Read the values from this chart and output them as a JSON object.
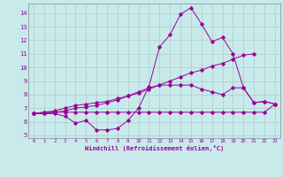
{
  "xlabel": "Windchill (Refroidissement éolien,°C)",
  "background_color": "#c8eaea",
  "line_color": "#990099",
  "grid_color": "#aacccc",
  "spine_color": "#888899",
  "x_ticks": [
    0,
    1,
    2,
    3,
    4,
    5,
    6,
    7,
    8,
    9,
    10,
    11,
    12,
    13,
    14,
    15,
    16,
    17,
    18,
    19,
    20,
    21,
    22,
    23
  ],
  "y_ticks": [
    5,
    6,
    7,
    8,
    9,
    10,
    11,
    12,
    13,
    14
  ],
  "ylim": [
    4.8,
    14.7
  ],
  "xlim": [
    -0.5,
    23.5
  ],
  "series": [
    [
      6.6,
      6.7,
      6.7,
      6.7,
      6.7,
      6.7,
      6.7,
      6.7,
      6.7,
      6.7,
      6.7,
      6.7,
      6.7,
      6.7,
      6.7,
      6.7,
      6.7,
      6.7,
      6.7,
      6.7,
      6.7,
      6.7,
      6.7,
      7.3
    ],
    [
      6.6,
      6.6,
      6.6,
      6.4,
      5.9,
      6.1,
      5.4,
      5.4,
      5.5,
      6.1,
      7.0,
      8.6,
      11.5,
      12.4,
      13.9,
      14.4,
      13.2,
      11.9,
      12.2,
      11.0,
      8.5,
      7.4,
      7.5,
      7.3
    ],
    [
      6.6,
      6.7,
      6.8,
      7.0,
      7.2,
      7.3,
      7.4,
      7.5,
      7.7,
      7.9,
      8.1,
      8.4,
      8.7,
      9.0,
      9.3,
      9.6,
      9.8,
      10.1,
      10.3,
      10.6,
      10.9,
      11.0,
      null,
      null
    ],
    [
      6.6,
      6.6,
      6.7,
      6.8,
      7.0,
      7.1,
      7.2,
      7.4,
      7.6,
      7.9,
      8.2,
      8.5,
      8.7,
      8.7,
      8.7,
      8.7,
      8.4,
      8.2,
      8.0,
      8.5,
      8.5,
      7.4,
      7.5,
      7.3
    ]
  ]
}
